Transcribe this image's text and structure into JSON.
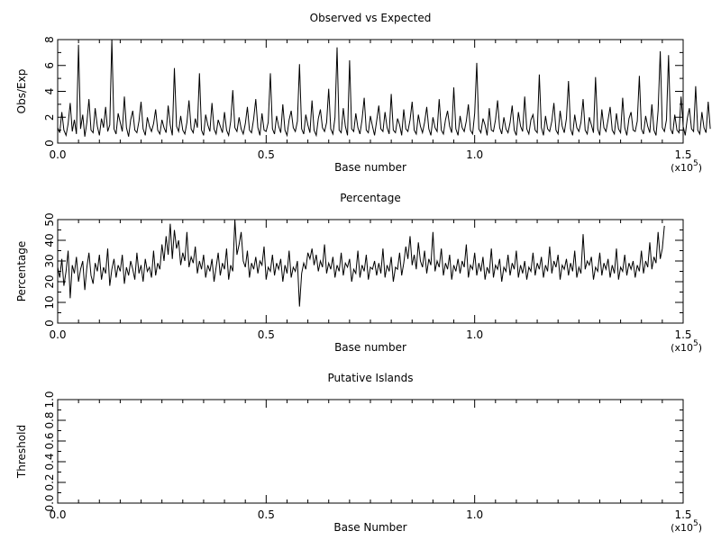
{
  "chart_data": [
    {
      "type": "line",
      "title": "Observed vs Expected",
      "xlabel": "Base number",
      "ylabel": "Obs/Exp",
      "xlim": [
        0,
        150000
      ],
      "ylim": [
        0,
        8
      ],
      "x_tick_labels": [
        "0.0",
        "0.5",
        "1.0",
        "1.5"
      ],
      "y_tick_labels": [
        "0",
        "2",
        "4",
        "6",
        "8"
      ],
      "x_scale_label": "(x10",
      "x_scale_exponent": "5",
      "x_scale_close": ")",
      "series": [
        {
          "sample_step": 500,
          "values": [
            1.2,
            0.8,
            2.4,
            1.0,
            0.6,
            1.5,
            3.1,
            0.9,
            1.8,
            0.7,
            7.6,
            1.1,
            2.2,
            0.5,
            1.6,
            3.4,
            1.0,
            0.8,
            2.7,
            1.3,
            0.6,
            1.9,
            1.2,
            2.8,
            0.9,
            1.4,
            8.0,
            1.1,
            0.7,
            2.3,
            1.6,
            0.9,
            3.6,
            1.2,
            0.5,
            1.8,
            2.5,
            1.0,
            0.8,
            1.7,
            3.2,
            1.1,
            0.6,
            2.0,
            1.3,
            0.9,
            1.5,
            2.6,
            1.0,
            0.7,
            1.8,
            1.2,
            0.8,
            2.9,
            1.4,
            0.6,
            5.8,
            1.3,
            0.9,
            2.1,
            1.0,
            0.7,
            1.6,
            3.3,
            1.1,
            0.8,
            1.9,
            1.2,
            5.4,
            1.0,
            0.6,
            2.2,
            1.4,
            0.9,
            3.1,
            1.1,
            0.7,
            1.8,
            1.3,
            0.8,
            2.4,
            1.0,
            0.6,
            1.7,
            4.1,
            1.2,
            0.9,
            2.0,
            1.1,
            0.7,
            1.5,
            2.8,
            1.0,
            0.8,
            1.9,
            3.4,
            1.2,
            0.6,
            2.3,
            1.0,
            0.9,
            1.6,
            5.4,
            1.1,
            0.7,
            2.1,
            1.3,
            0.8,
            3.0,
            1.0,
            0.6,
            1.8,
            2.5,
            1.2,
            0.9,
            1.7,
            6.1,
            1.1,
            0.7,
            2.2,
            1.4,
            0.8,
            3.3,
            1.0,
            0.6,
            1.9,
            2.6,
            1.2,
            0.9,
            1.6,
            4.2,
            1.1,
            0.7,
            2.0,
            7.4,
            1.0,
            0.8,
            2.7,
            1.3,
            0.6,
            6.4,
            1.1,
            0.9,
            2.3,
            1.2,
            0.7,
            1.8,
            3.5,
            1.0,
            0.8,
            2.1,
            1.3,
            0.6,
            1.7,
            2.9,
            1.1,
            0.9,
            2.4,
            1.2,
            0.7,
            3.8,
            1.0,
            0.8,
            1.9,
            1.4,
            0.6,
            2.6,
            1.1,
            0.9,
            1.8,
            3.2,
            1.0,
            0.7,
            2.2,
            1.3,
            0.8,
            1.6,
            2.8,
            1.1,
            0.6,
            2.0,
            1.2,
            0.9,
            3.4,
            1.0,
            0.7,
            1.8,
            2.5,
            1.3,
            0.8,
            4.3,
            1.1,
            0.6,
            2.1,
            1.2,
            0.9,
            1.7,
            3.0,
            1.0,
            0.7,
            2.3,
            6.2,
            1.1,
            0.8,
            1.9,
            1.4,
            0.6,
            2.7,
            1.0,
            0.9,
            1.8,
            3.3,
            1.2,
            0.7,
            2.0,
            1.1,
            0.8,
            1.6,
            2.9,
            1.0,
            0.6,
            2.4,
            1.3,
            0.9,
            3.6,
            1.1,
            0.7,
            1.8,
            2.2,
            1.0,
            0.8,
            5.3,
            1.2,
            0.6,
            2.1,
            1.1,
            0.9,
            1.7,
            3.1,
            1.0,
            0.7,
            2.5,
            1.3,
            0.8,
            1.9,
            4.8,
            1.1,
            0.6,
            2.2,
            1.2,
            0.9,
            1.6,
            3.4,
            1.0,
            0.7,
            2.0,
            1.4,
            0.8,
            5.1,
            1.1,
            0.6,
            2.6,
            1.2,
            0.9,
            1.8,
            2.8,
            1.0,
            0.7,
            2.3,
            1.1,
            0.8,
            3.5,
            1.2,
            0.6,
            1.9,
            2.4,
            1.0,
            0.9,
            1.7,
            5.2,
            1.1,
            0.7,
            2.1,
            1.3,
            0.8,
            3.0,
            1.0,
            0.6,
            2.5,
            7.1,
            1.2,
            0.9,
            1.8,
            6.8,
            1.1,
            0.7,
            2.2,
            1.0,
            0.8,
            3.6,
            1.3,
            0.6,
            1.9,
            2.7,
            1.1,
            0.9,
            4.4,
            1.0,
            0.7,
            2.4,
            1.2,
            0.8,
            3.2,
            1.1
          ]
        }
      ]
    },
    {
      "type": "line",
      "title": "Percentage",
      "xlabel": "Base number",
      "ylabel": "Percentage",
      "xlim": [
        0,
        150000
      ],
      "ylim": [
        0,
        50
      ],
      "x_tick_labels": [
        "0.0",
        "0.5",
        "1.0",
        "1.5"
      ],
      "y_tick_labels": [
        "0",
        "10",
        "20",
        "30",
        "40",
        "50"
      ],
      "x_scale_label": "(x10",
      "x_scale_exponent": "5",
      "x_scale_close": ")",
      "series": [
        {
          "sample_step": 500,
          "values": [
            27,
            22,
            31,
            18,
            25,
            35,
            12,
            28,
            24,
            32,
            20,
            26,
            30,
            16,
            27,
            34,
            23,
            19,
            29,
            25,
            33,
            21,
            27,
            24,
            36,
            18,
            26,
            31,
            22,
            28,
            25,
            33,
            19,
            27,
            23,
            30,
            26,
            21,
            34,
            24,
            28,
            20,
            31,
            25,
            27,
            22,
            35,
            23,
            29,
            26,
            38,
            30,
            42,
            33,
            48,
            31,
            45,
            36,
            40,
            28,
            34,
            30,
            44,
            27,
            32,
            29,
            37,
            24,
            30,
            26,
            33,
            22,
            28,
            25,
            31,
            20,
            27,
            34,
            23,
            29,
            26,
            36,
            21,
            28,
            25,
            50,
            33,
            38,
            44,
            30,
            27,
            35,
            22,
            29,
            26,
            32,
            24,
            30,
            28,
            37,
            21,
            27,
            25,
            33,
            23,
            29,
            26,
            31,
            20,
            28,
            24,
            35,
            22,
            27,
            25,
            30,
            8,
            24,
            29,
            26,
            34,
            31,
            36,
            28,
            33,
            25,
            30,
            27,
            38,
            24,
            29,
            26,
            32,
            22,
            28,
            25,
            34,
            23,
            29,
            27,
            31,
            20,
            26,
            24,
            35,
            22,
            28,
            25,
            33,
            21,
            27,
            26,
            30,
            23,
            29,
            24,
            36,
            22,
            28,
            25,
            32,
            20,
            27,
            26,
            34,
            23,
            29,
            37,
            31,
            42,
            28,
            33,
            26,
            39,
            30,
            27,
            35,
            24,
            31,
            28,
            44,
            25,
            30,
            27,
            36,
            23,
            29,
            26,
            33,
            21,
            28,
            25,
            31,
            24,
            30,
            27,
            38,
            22,
            28,
            26,
            34,
            23,
            29,
            25,
            32,
            21,
            27,
            24,
            36,
            22,
            28,
            26,
            31,
            20,
            27,
            25,
            33,
            23,
            29,
            26,
            35,
            22,
            28,
            24,
            30,
            21,
            27,
            25,
            34,
            23,
            29,
            26,
            32,
            22,
            28,
            25,
            37,
            24,
            30,
            27,
            33,
            21,
            28,
            26,
            31,
            23,
            29,
            25,
            35,
            22,
            27,
            24,
            43,
            26,
            30,
            28,
            32,
            21,
            27,
            25,
            34,
            23,
            29,
            26,
            31,
            22,
            28,
            24,
            36,
            21,
            27,
            25,
            33,
            23,
            29,
            26,
            30,
            22,
            28,
            25,
            35,
            24,
            30,
            27,
            39,
            26,
            32,
            29,
            44,
            31,
            36,
            47
          ]
        }
      ]
    },
    {
      "type": "line",
      "title": "Putative Islands",
      "xlabel": "Base Number",
      "ylabel": "Threshold",
      "xlim": [
        0,
        150000
      ],
      "ylim": [
        0,
        1
      ],
      "x_tick_labels": [
        "0.0",
        "0.5",
        "1.0",
        "1.5"
      ],
      "y_tick_labels": [
        "0.0",
        "0.2",
        "0.4",
        "0.6",
        "0.8",
        "1.0"
      ],
      "x_scale_label": "(x10",
      "x_scale_exponent": "5",
      "x_scale_close": ")",
      "series": []
    }
  ]
}
